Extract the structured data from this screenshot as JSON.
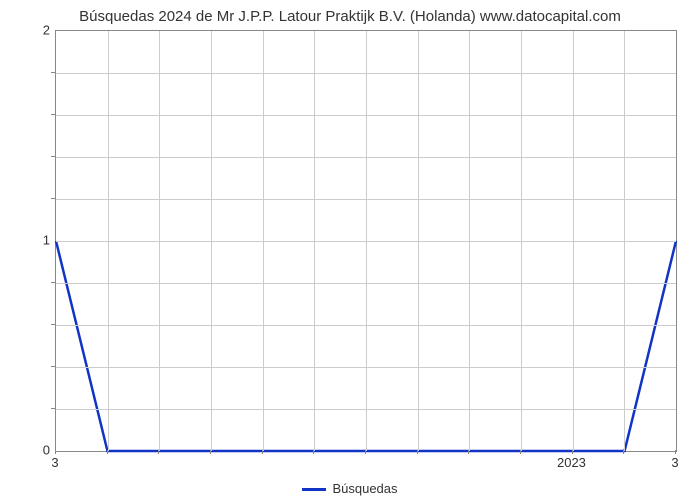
{
  "chart": {
    "type": "line",
    "title": "Búsquedas 2024 de Mr J.P.P. Latour Praktijk B.V. (Holanda) www.datocapital.com",
    "title_fontsize": 15,
    "title_color": "#333333",
    "background_color": "#ffffff",
    "border_color": "#888888",
    "grid_color": "#cccccc",
    "line_color": "#1034c6",
    "line_width": 2.5,
    "x_axis": {
      "left_label": "3",
      "right_label": "3",
      "mid_label": "2023",
      "mid_label_fraction": 0.833,
      "tick_count": 12
    },
    "y_axis": {
      "min": 0,
      "max": 2,
      "major_ticks": [
        0,
        1,
        2
      ],
      "minor_step": 0.2
    },
    "grid_v_count": 12,
    "series": {
      "label": "Búsquedas",
      "points": [
        {
          "x": 0.0,
          "y": 1.0
        },
        {
          "x": 0.083,
          "y": 0.0
        },
        {
          "x": 0.917,
          "y": 0.0
        },
        {
          "x": 1.0,
          "y": 1.0
        }
      ]
    },
    "legend": {
      "position": "bottom-center",
      "swatch_color": "#1034c6",
      "label": "Búsquedas",
      "fontsize": 13
    }
  }
}
